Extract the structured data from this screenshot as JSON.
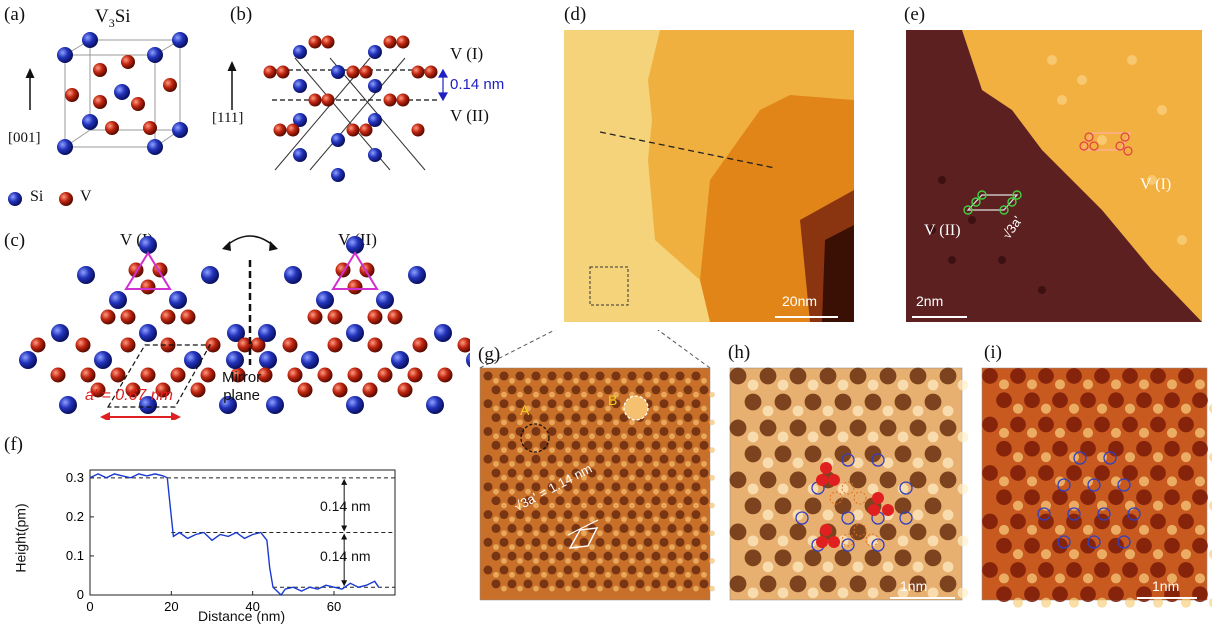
{
  "panels": {
    "a": {
      "label": "(a)",
      "title_base": "V",
      "title_sub": "3",
      "title_rest": "Si",
      "direction": "[001]"
    },
    "b": {
      "label": "(b)",
      "direction": "[111]",
      "layer1": "V (I)",
      "layer2": "V (II)",
      "spacing": "0.14 nm"
    },
    "legend": {
      "si": "Si",
      "v": "V"
    },
    "c": {
      "label": "(c)",
      "left_title": "V (I)",
      "right_title": "V (II)",
      "lattice": "a' = 0.67 nm",
      "mirror_line1": "Mirror",
      "mirror_line2": "plane"
    },
    "d": {
      "label": "(d)",
      "scale": "20nm"
    },
    "e": {
      "label": "(e)",
      "scale": "2nm",
      "v1": "V (I)",
      "v2": "V (II)",
      "sqrt": "√3a'"
    },
    "f": {
      "label": "(f)",
      "ylabel": "Height(pm)",
      "xlabel": "Distance (nm)",
      "step1": "0.14 nm",
      "step2": "0.14 nm"
    },
    "g": {
      "label": "(g)",
      "a": "A",
      "b": "B",
      "sqrt": "√3a' = 1.14 nm"
    },
    "h": {
      "label": "(h)",
      "scale": "1nm"
    },
    "i": {
      "label": "(i)",
      "scale": "1nm"
    }
  },
  "colors": {
    "si": "#2233bb",
    "v": "#b02010",
    "magenta": "#d030d0",
    "blue_text": "#2020c0",
    "red_arrow": "#e02020"
  },
  "chart_data": {
    "type": "line",
    "xlabel": "Distance (nm)",
    "ylabel": "Height(pm)",
    "xlim": [
      0,
      75
    ],
    "ylim": [
      0,
      0.32
    ],
    "xticks": [
      0,
      20,
      40,
      60
    ],
    "yticks": [
      0,
      0.1,
      0.2,
      0.3
    ],
    "series": [
      {
        "x": [
          0,
          2,
          4,
          6,
          8,
          10,
          12,
          14,
          16,
          18,
          19,
          19.8,
          20.5,
          22,
          24,
          26,
          28,
          30,
          32,
          34,
          36,
          38,
          40,
          42,
          43.5,
          44.2,
          45,
          46,
          47,
          48,
          50,
          52,
          54,
          56,
          58,
          60,
          62,
          64,
          66,
          68,
          70,
          71
        ],
        "y": [
          0.3,
          0.31,
          0.3,
          0.31,
          0.305,
          0.3,
          0.31,
          0.305,
          0.31,
          0.305,
          0.3,
          0.22,
          0.15,
          0.16,
          0.145,
          0.155,
          0.16,
          0.14,
          0.155,
          0.15,
          0.16,
          0.145,
          0.155,
          0.16,
          0.14,
          0.07,
          0.02,
          0.01,
          0.0,
          0.015,
          0.02,
          0.01,
          0.02,
          0.015,
          0.025,
          0.02,
          0.015,
          0.03,
          0.02,
          0.025,
          0.035,
          0.02
        ]
      }
    ],
    "reference_lines": [
      0.3,
      0.16,
      0.02
    ]
  }
}
